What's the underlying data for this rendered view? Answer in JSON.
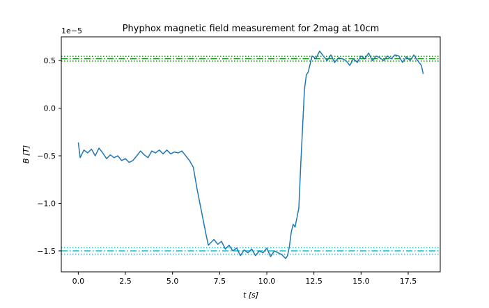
{
  "chart_data": {
    "type": "line",
    "title": "Phyphox magnetic field measurement for 2mag at 10cm",
    "xlabel": "t [s]",
    "ylabel": "B [T]",
    "y_offset_label": "1e−5",
    "xlim": [
      -0.9,
      19.2
    ],
    "ylim": [
      -1.72,
      0.75
    ],
    "x_ticks": [
      0,
      2.5,
      5,
      7.5,
      10,
      12.5,
      15,
      17.5
    ],
    "x_tick_labels": [
      "0.0",
      "2.5",
      "5.0",
      "7.5",
      "10.0",
      "12.5",
      "15.0",
      "17.5"
    ],
    "y_ticks": [
      0.5,
      0,
      -0.5,
      -1,
      -1.5
    ],
    "y_tick_labels": [
      "0.5",
      "0.0",
      "−0.5",
      "−1.0",
      "−1.5"
    ],
    "grid": false,
    "series": [
      {
        "color": "#1f77b4",
        "x": [
          0.0,
          0.1,
          0.3,
          0.5,
          0.7,
          0.9,
          1.1,
          1.3,
          1.5,
          1.7,
          1.9,
          2.1,
          2.3,
          2.5,
          2.7,
          2.9,
          3.1,
          3.3,
          3.5,
          3.7,
          3.9,
          4.1,
          4.3,
          4.5,
          4.7,
          4.9,
          5.1,
          5.3,
          5.5,
          5.7,
          5.9,
          6.1,
          6.3,
          6.5,
          6.6,
          6.7,
          6.8,
          6.9,
          7.0,
          7.2,
          7.4,
          7.6,
          7.8,
          8.0,
          8.2,
          8.4,
          8.6,
          8.8,
          9.0,
          9.2,
          9.4,
          9.6,
          9.8,
          10.0,
          10.2,
          10.4,
          10.6,
          10.8,
          11.0,
          11.1,
          11.2,
          11.3,
          11.4,
          11.5,
          11.6,
          11.7,
          11.8,
          11.9,
          12.0,
          12.1,
          12.2,
          12.4,
          12.6,
          12.8,
          13.0,
          13.2,
          13.4,
          13.6,
          13.8,
          14.0,
          14.2,
          14.4,
          14.6,
          14.8,
          15.0,
          15.2,
          15.4,
          15.6,
          15.8,
          16.0,
          16.2,
          16.4,
          16.6,
          16.8,
          17.0,
          17.2,
          17.4,
          17.6,
          17.8,
          18.0,
          18.2,
          18.3
        ],
        "y": [
          -0.36,
          -0.52,
          -0.44,
          -0.47,
          -0.43,
          -0.5,
          -0.42,
          -0.47,
          -0.53,
          -0.49,
          -0.52,
          -0.5,
          -0.55,
          -0.53,
          -0.57,
          -0.55,
          -0.5,
          -0.45,
          -0.49,
          -0.52,
          -0.45,
          -0.47,
          -0.44,
          -0.48,
          -0.44,
          -0.48,
          -0.46,
          -0.47,
          -0.45,
          -0.5,
          -0.55,
          -0.62,
          -0.85,
          -1.05,
          -1.15,
          -1.25,
          -1.35,
          -1.44,
          -1.42,
          -1.38,
          -1.43,
          -1.4,
          -1.48,
          -1.44,
          -1.5,
          -1.47,
          -1.55,
          -1.49,
          -1.52,
          -1.48,
          -1.55,
          -1.5,
          -1.52,
          -1.47,
          -1.56,
          -1.5,
          -1.52,
          -1.54,
          -1.58,
          -1.55,
          -1.45,
          -1.3,
          -1.22,
          -1.25,
          -1.15,
          -1.05,
          -0.6,
          -0.2,
          0.2,
          0.35,
          0.38,
          0.55,
          0.52,
          0.6,
          0.55,
          0.5,
          0.56,
          0.48,
          0.53,
          0.52,
          0.5,
          0.45,
          0.52,
          0.48,
          0.55,
          0.52,
          0.58,
          0.5,
          0.55,
          0.53,
          0.5,
          0.55,
          0.52,
          0.56,
          0.55,
          0.48,
          0.54,
          0.5,
          0.56,
          0.5,
          0.45,
          0.36
        ]
      }
    ],
    "reference_lines": [
      {
        "y": 0.545,
        "color": "#008000",
        "style": "dotted"
      },
      {
        "y": 0.52,
        "color": "#008000",
        "style": "dashdot"
      },
      {
        "y": 0.495,
        "color": "#008000",
        "style": "dotted"
      },
      {
        "y": -1.465,
        "color": "#17becf",
        "style": "dotted"
      },
      {
        "y": -1.5,
        "color": "#17becf",
        "style": "dashdot"
      },
      {
        "y": -1.535,
        "color": "#17becf",
        "style": "dotted"
      }
    ]
  }
}
